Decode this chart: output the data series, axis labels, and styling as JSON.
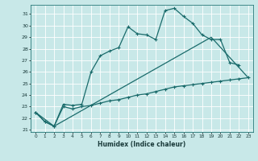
{
  "xlabel": "Humidex (Indice chaleur)",
  "bg_color": "#c8e8e8",
  "grid_color": "#b0d0d0",
  "line_color": "#1a6b6b",
  "xlim": [
    -0.5,
    23.5
  ],
  "ylim": [
    20.8,
    31.8
  ],
  "yticks": [
    21,
    22,
    23,
    24,
    25,
    26,
    27,
    28,
    29,
    30,
    31
  ],
  "xticks": [
    0,
    1,
    2,
    3,
    4,
    5,
    6,
    7,
    8,
    9,
    10,
    11,
    12,
    13,
    14,
    15,
    16,
    17,
    18,
    19,
    20,
    21,
    22,
    23
  ],
  "series1_x": [
    0,
    1,
    2,
    3,
    4,
    5,
    6,
    7,
    8,
    9,
    10,
    11,
    12,
    13,
    14,
    15,
    16,
    17,
    18,
    19,
    20,
    21,
    22
  ],
  "series1_y": [
    22.5,
    21.7,
    21.3,
    23.2,
    23.1,
    23.2,
    26.0,
    27.4,
    27.8,
    28.1,
    29.9,
    29.3,
    29.2,
    28.8,
    31.3,
    31.5,
    30.8,
    30.2,
    29.2,
    28.8,
    28.8,
    26.8,
    26.6
  ],
  "series2_x": [
    0,
    1,
    2,
    3,
    4,
    5,
    6,
    7,
    8,
    9,
    10,
    11,
    12,
    13,
    14,
    15,
    16,
    17,
    18,
    19,
    20,
    21,
    22,
    23
  ],
  "series2_y": [
    22.5,
    21.7,
    21.3,
    23.0,
    22.8,
    23.0,
    23.1,
    23.3,
    23.5,
    23.6,
    23.8,
    24.0,
    24.1,
    24.3,
    24.5,
    24.7,
    24.8,
    24.9,
    25.0,
    25.1,
    25.2,
    25.3,
    25.4,
    25.5
  ],
  "series3_x": [
    0,
    2,
    19,
    23
  ],
  "series3_y": [
    22.5,
    21.3,
    29.0,
    25.5
  ]
}
